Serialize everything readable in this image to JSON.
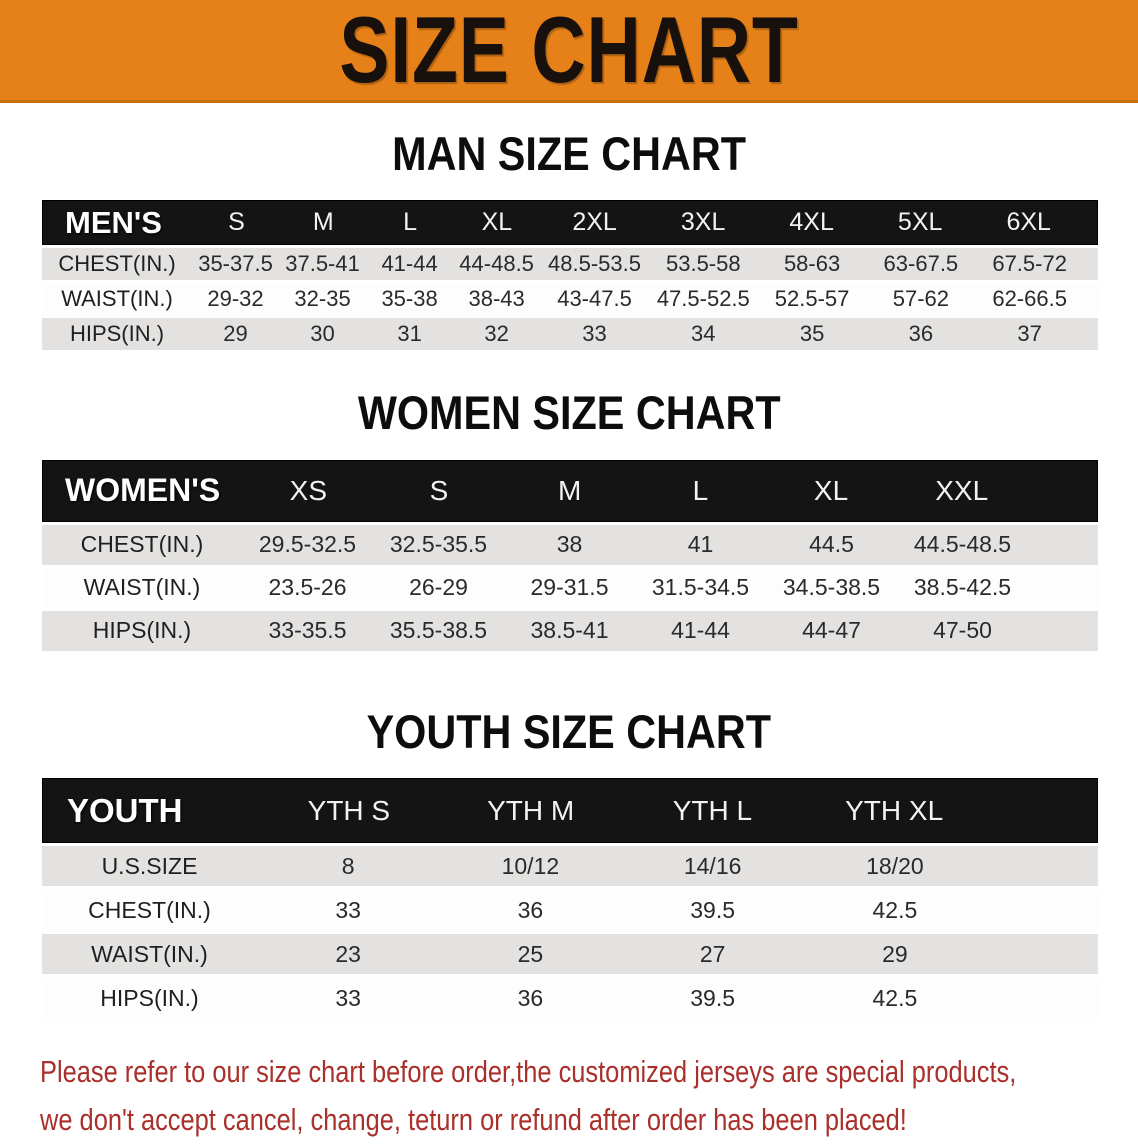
{
  "banner": {
    "title": "SIZE CHART"
  },
  "colors": {
    "banner_bg": "#E68119",
    "header_bar": "#141414",
    "row_gray": "#E3E2E0",
    "footer_red": "#A9302B"
  },
  "men": {
    "section_title": "MAN SIZE CHART",
    "header_label": "MEN'S",
    "columns": [
      "S",
      "M",
      "L",
      "XL",
      "2XL",
      "3XL",
      "4XL",
      "5XL",
      "6XL"
    ],
    "rows": [
      {
        "label": "CHEST(IN.)",
        "values": [
          "35-37.5",
          "37.5-41",
          "41-44",
          "44-48.5",
          "48.5-53.5",
          "53.5-58",
          "58-63",
          "63-67.5",
          "67.5-72"
        ]
      },
      {
        "label": "WAIST(IN.)",
        "values": [
          "29-32",
          "32-35",
          "35-38",
          "38-43",
          "43-47.5",
          "47.5-52.5",
          "52.5-57",
          "57-62",
          "62-66.5"
        ]
      },
      {
        "label": "HIPS(IN.)",
        "values": [
          "29",
          "30",
          "31",
          "32",
          "33",
          "34",
          "35",
          "36",
          "37"
        ]
      }
    ]
  },
  "women": {
    "section_title": "WOMEN SIZE CHART",
    "header_label": "WOMEN'S",
    "columns": [
      "XS",
      "S",
      "M",
      "L",
      "XL",
      "XXL"
    ],
    "rows": [
      {
        "label": "CHEST(IN.)",
        "values": [
          "29.5-32.5",
          "32.5-35.5",
          "38",
          "41",
          "44.5",
          "44.5-48.5"
        ]
      },
      {
        "label": "WAIST(IN.)",
        "values": [
          "23.5-26",
          "26-29",
          "29-31.5",
          "31.5-34.5",
          "34.5-38.5",
          "38.5-42.5"
        ]
      },
      {
        "label": "HIPS(IN.)",
        "values": [
          "33-35.5",
          "35.5-38.5",
          "38.5-41",
          "41-44",
          "44-47",
          "47-50"
        ]
      }
    ]
  },
  "youth": {
    "section_title": "YOUTH SIZE CHART",
    "header_label": "YOUTH",
    "columns": [
      "YTH S",
      "YTH M",
      "YTH L",
      "YTH XL"
    ],
    "rows": [
      {
        "label": "U.S.SIZE",
        "values": [
          "8",
          "10/12",
          "14/16",
          "18/20"
        ]
      },
      {
        "label": "CHEST(IN.)",
        "values": [
          "33",
          "36",
          "39.5",
          "42.5"
        ]
      },
      {
        "label": "WAIST(IN.)",
        "values": [
          "23",
          "25",
          "27",
          "29"
        ]
      },
      {
        "label": "HIPS(IN.)",
        "values": [
          "33",
          "36",
          "39.5",
          "42.5"
        ]
      }
    ]
  },
  "footer": {
    "line1": "Please refer to our size chart before order,the customized jerseys are special products,",
    "line2": "we don't accept cancel, change, teturn or refund after order has been placed!"
  }
}
